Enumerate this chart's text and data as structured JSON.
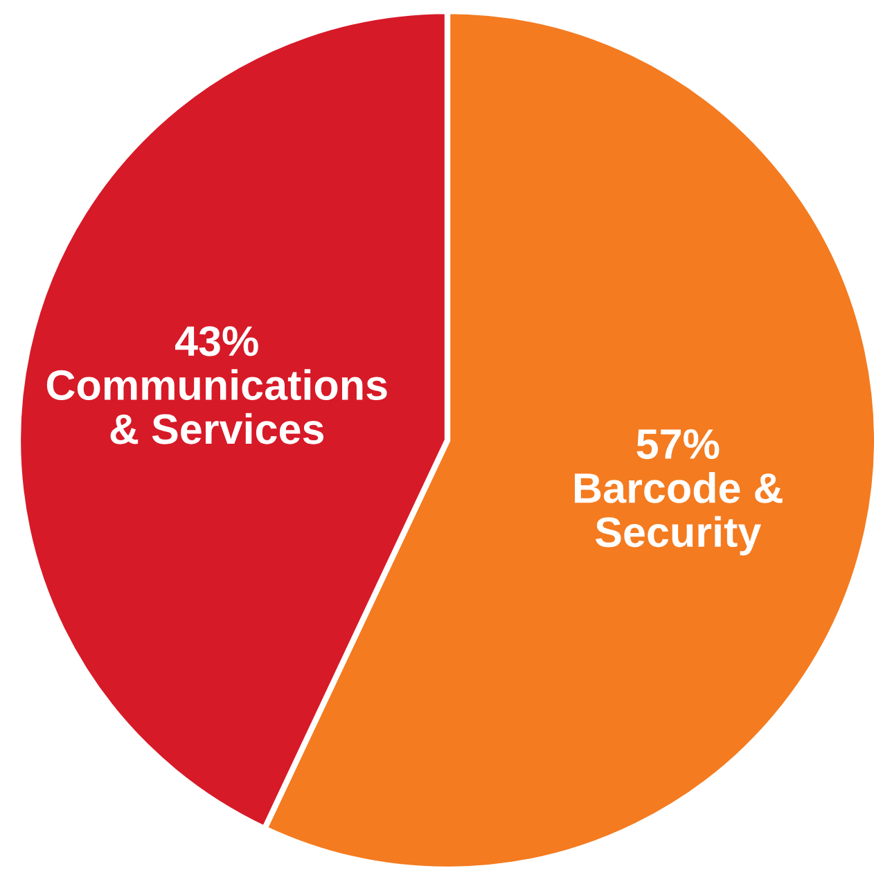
{
  "chart_data": {
    "type": "pie",
    "categories": [
      "Barcode &\nSecurity",
      "Communications\n& Services"
    ],
    "values": [
      57,
      43
    ],
    "value_labels": [
      "57%",
      "43%"
    ],
    "colors": [
      "#f47b20",
      "#d71a28"
    ]
  }
}
